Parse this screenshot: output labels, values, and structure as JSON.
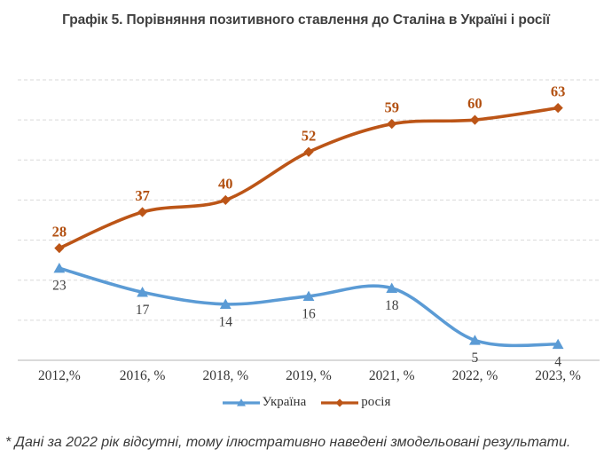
{
  "page": {
    "footnote": "* Дані за 2022 рік відсутні, тому ілюстративно наведені змодельовані результати."
  },
  "chart_data": {
    "type": "line",
    "title": "Графік 5. Порівняння позитивного ставлення до Сталіна в Україні і росії",
    "categories": [
      "2012,%",
      "2016, %",
      "2018, %",
      "2019, %",
      "2021, %",
      "2022, %",
      "2023, %"
    ],
    "series": [
      {
        "name": "Україна",
        "values": [
          23,
          17,
          14,
          16,
          18,
          5,
          4
        ],
        "color": "#5B9BD5",
        "marker": "triangle",
        "labels": "below",
        "label_color": "#3f3f3f"
      },
      {
        "name": "росія",
        "values": [
          28,
          37,
          40,
          52,
          59,
          60,
          63
        ],
        "color": "#BC5517",
        "marker": "diamond",
        "labels": "above",
        "label_color": "#B25011"
      }
    ],
    "xlabel": "",
    "ylabel": "",
    "ylim": [
      0,
      70
    ],
    "gridline_step": 10,
    "grid_style": "dashed",
    "smoothed": true,
    "legend_position": "bottom",
    "style": {
      "grid_color": "#D9D9D9",
      "axis_color": "#C4C4C4",
      "axis_label_color": "#353535",
      "background": "#FFFFFF"
    }
  }
}
